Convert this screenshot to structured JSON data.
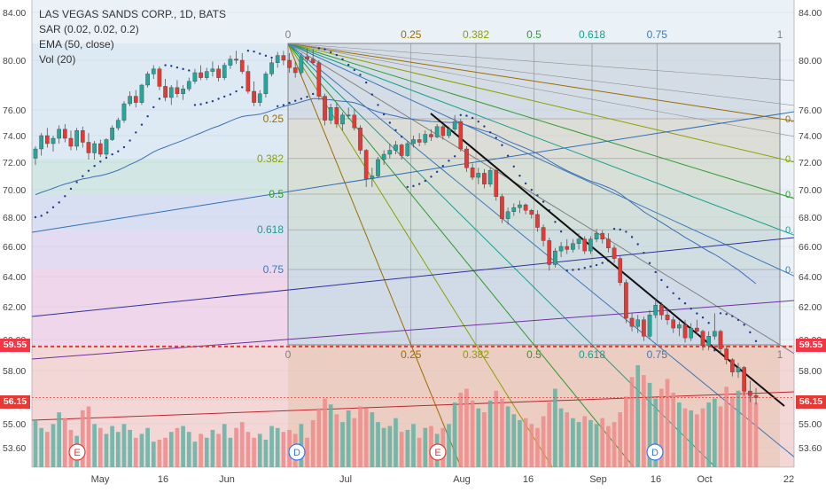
{
  "legend": {
    "title": "LAS VEGAS SANDS CORP., 1D, BATS",
    "sar": "SAR (0.02, 0.02, 0.2)",
    "ema": "EMA (50, close)",
    "vol": "Vol (20)"
  },
  "price_tags": [
    {
      "value": "59.55",
      "color": "#f23645"
    },
    {
      "value": "56.15",
      "color": "#e53935"
    }
  ],
  "chart_data": {
    "type": "candlestick",
    "title": "LAS VEGAS SANDS CORP., 1D, BATS",
    "symbol": "LVS",
    "interval": "1D",
    "exchange": "BATS",
    "ylim": [
      52.6,
      85.0
    ],
    "yticks": [
      "84.00",
      "80.00",
      "76.00",
      "74.00",
      "72.00",
      "70.00",
      "68.00",
      "66.00",
      "64.00",
      "62.00",
      "60.00",
      "58.00",
      "56.00",
      "55.00",
      "53.60"
    ],
    "xticks": [
      "May",
      "16",
      "Jun",
      "Jul",
      "Aug",
      "16",
      "Sep",
      "16",
      "Oct",
      "22"
    ],
    "fib_levels": [
      "0",
      "0.25",
      "0.382",
      "0.5",
      "0.618",
      "0.75",
      "1"
    ],
    "fib_colors": [
      "#808080",
      "#9c6d00",
      "#8ca000",
      "#2e9b2e",
      "#16a08c",
      "#3b79b8",
      "#808080"
    ],
    "last_price": 56.15,
    "horizontal_line": 59.55,
    "earnings_markers": [
      "E",
      "E"
    ],
    "dividend_markers": [
      "D",
      "D"
    ],
    "ohlc": [
      [
        72.3,
        73.2,
        71.8,
        73.0
      ],
      [
        73.0,
        74.2,
        72.5,
        74.0
      ],
      [
        74.0,
        74.6,
        73.1,
        73.4
      ],
      [
        73.4,
        74.0,
        72.8,
        73.8
      ],
      [
        73.8,
        74.8,
        73.4,
        74.5
      ],
      [
        74.5,
        74.9,
        73.5,
        73.8
      ],
      [
        73.8,
        74.4,
        72.9,
        73.2
      ],
      [
        73.2,
        74.6,
        72.9,
        74.4
      ],
      [
        74.4,
        74.7,
        73.1,
        73.5
      ],
      [
        73.5,
        74.2,
        72.2,
        72.7
      ],
      [
        72.7,
        73.6,
        72.2,
        73.4
      ],
      [
        73.4,
        73.7,
        72.4,
        72.6
      ],
      [
        72.6,
        73.8,
        72.4,
        73.7
      ],
      [
        73.7,
        74.8,
        73.6,
        74.6
      ],
      [
        74.6,
        75.4,
        74.4,
        75.2
      ],
      [
        75.2,
        76.7,
        75.0,
        76.5
      ],
      [
        76.5,
        77.5,
        76.3,
        77.1
      ],
      [
        77.1,
        77.6,
        76.2,
        76.6
      ],
      [
        76.6,
        78.1,
        76.4,
        78.0
      ],
      [
        78.0,
        79.1,
        77.8,
        78.9
      ],
      [
        78.9,
        79.6,
        78.5,
        79.3
      ],
      [
        79.3,
        79.5,
        77.6,
        77.9
      ],
      [
        77.9,
        78.5,
        76.7,
        77.0
      ],
      [
        77.0,
        78.0,
        76.4,
        77.8
      ],
      [
        77.8,
        78.4,
        77.0,
        77.3
      ],
      [
        77.3,
        78.0,
        76.8,
        77.7
      ],
      [
        77.7,
        78.6,
        77.5,
        78.3
      ],
      [
        78.3,
        79.3,
        78.1,
        79.0
      ],
      [
        79.0,
        79.6,
        78.4,
        78.6
      ],
      [
        78.6,
        79.4,
        78.4,
        79.1
      ],
      [
        79.1,
        79.9,
        78.7,
        79.3
      ],
      [
        79.3,
        79.6,
        78.3,
        78.6
      ],
      [
        78.6,
        79.8,
        78.4,
        79.6
      ],
      [
        79.6,
        80.4,
        79.3,
        80.1
      ],
      [
        80.1,
        80.8,
        79.7,
        80.0
      ],
      [
        80.0,
        80.6,
        78.9,
        79.1
      ],
      [
        79.1,
        79.6,
        77.3,
        77.5
      ],
      [
        77.5,
        78.3,
        76.3,
        76.6
      ],
      [
        76.6,
        77.6,
        76.3,
        77.3
      ],
      [
        77.3,
        79.1,
        77.0,
        78.9
      ],
      [
        78.9,
        80.1,
        78.7,
        79.8
      ],
      [
        79.8,
        80.7,
        79.4,
        80.4
      ],
      [
        80.4,
        80.8,
        79.6,
        80.0
      ],
      [
        80.0,
        80.6,
        79.0,
        79.4
      ],
      [
        79.4,
        79.9,
        78.6,
        79.0
      ],
      [
        79.0,
        80.6,
        78.8,
        80.3
      ],
      [
        80.3,
        81.0,
        79.8,
        80.1
      ],
      [
        80.1,
        80.9,
        79.6,
        79.8
      ],
      [
        79.8,
        80.0,
        76.8,
        77.1
      ],
      [
        77.1,
        77.3,
        74.8,
        75.2
      ],
      [
        75.2,
        76.5,
        74.9,
        76.2
      ],
      [
        76.2,
        76.6,
        74.6,
        74.9
      ],
      [
        74.9,
        75.8,
        74.4,
        75.6
      ],
      [
        75.6,
        76.2,
        75.3,
        75.6
      ],
      [
        75.6,
        76.1,
        74.4,
        74.6
      ],
      [
        74.6,
        74.8,
        72.6,
        72.9
      ],
      [
        72.9,
        73.0,
        70.2,
        70.8
      ],
      [
        70.8,
        71.6,
        70.2,
        71.0
      ],
      [
        71.0,
        72.4,
        70.9,
        72.2
      ],
      [
        72.2,
        72.9,
        71.8,
        72.6
      ],
      [
        72.6,
        73.4,
        72.3,
        72.9
      ],
      [
        72.9,
        73.6,
        72.6,
        73.3
      ],
      [
        73.3,
        73.4,
        72.2,
        72.5
      ],
      [
        72.5,
        73.6,
        72.4,
        73.4
      ],
      [
        73.4,
        74.0,
        73.1,
        73.7
      ],
      [
        73.7,
        74.2,
        73.2,
        73.5
      ],
      [
        73.5,
        74.4,
        73.3,
        74.1
      ],
      [
        74.1,
        74.5,
        73.6,
        73.9
      ],
      [
        73.9,
        74.9,
        73.8,
        74.7
      ],
      [
        74.7,
        74.9,
        73.7,
        74.0
      ],
      [
        74.0,
        74.7,
        73.8,
        74.5
      ],
      [
        74.5,
        75.6,
        74.2,
        75.1
      ],
      [
        75.1,
        75.3,
        72.8,
        73.0
      ],
      [
        73.0,
        73.2,
        71.3,
        71.6
      ],
      [
        71.6,
        71.9,
        70.7,
        70.9
      ],
      [
        70.9,
        71.6,
        70.4,
        71.2
      ],
      [
        71.2,
        71.5,
        70.1,
        70.4
      ],
      [
        70.4,
        71.6,
        70.2,
        71.4
      ],
      [
        71.4,
        71.5,
        69.2,
        69.5
      ],
      [
        69.5,
        69.7,
        67.6,
        67.9
      ],
      [
        67.9,
        68.7,
        67.5,
        68.4
      ],
      [
        68.4,
        69.0,
        68.1,
        68.7
      ],
      [
        68.7,
        69.2,
        68.3,
        68.9
      ],
      [
        68.9,
        69.0,
        68.2,
        68.5
      ],
      [
        68.5,
        68.6,
        67.9,
        68.2
      ],
      [
        68.2,
        68.5,
        67.0,
        67.3
      ],
      [
        67.3,
        67.5,
        66.0,
        66.4
      ],
      [
        66.4,
        66.6,
        64.4,
        64.8
      ],
      [
        64.8,
        65.9,
        64.6,
        65.7
      ],
      [
        65.7,
        66.3,
        65.3,
        66.0
      ],
      [
        66.0,
        66.5,
        65.5,
        65.8
      ],
      [
        65.8,
        66.5,
        65.6,
        66.2
      ],
      [
        66.2,
        66.9,
        65.8,
        66.5
      ],
      [
        66.5,
        66.7,
        65.5,
        65.7
      ],
      [
        65.7,
        66.7,
        65.5,
        66.5
      ],
      [
        66.5,
        67.2,
        66.3,
        66.9
      ],
      [
        66.9,
        67.1,
        66.2,
        66.5
      ],
      [
        66.5,
        66.9,
        65.6,
        65.9
      ],
      [
        65.9,
        66.1,
        64.9,
        65.2
      ],
      [
        65.2,
        65.4,
        63.4,
        63.6
      ],
      [
        63.6,
        63.8,
        61.0,
        61.3
      ],
      [
        61.3,
        61.6,
        60.5,
        60.8
      ],
      [
        60.8,
        61.5,
        60.4,
        61.2
      ],
      [
        61.2,
        61.4,
        59.9,
        60.2
      ],
      [
        60.2,
        61.8,
        60.0,
        61.5
      ],
      [
        61.5,
        62.5,
        61.3,
        62.1
      ],
      [
        62.1,
        62.3,
        61.2,
        61.5
      ],
      [
        61.5,
        61.9,
        60.9,
        61.2
      ],
      [
        61.2,
        61.4,
        60.4,
        60.7
      ],
      [
        60.7,
        61.1,
        60.2,
        60.9
      ],
      [
        60.9,
        61.2,
        59.8,
        60.1
      ],
      [
        60.1,
        61.0,
        59.9,
        60.7
      ],
      [
        60.7,
        61.2,
        60.3,
        60.5
      ],
      [
        60.5,
        60.6,
        59.3,
        59.6
      ],
      [
        59.6,
        60.5,
        59.3,
        60.2
      ],
      [
        60.2,
        61.6,
        60.0,
        60.5
      ],
      [
        60.5,
        60.6,
        59.1,
        59.4
      ],
      [
        59.4,
        59.6,
        58.4,
        58.7
      ],
      [
        58.7,
        58.8,
        57.6,
        57.9
      ],
      [
        57.9,
        58.5,
        57.5,
        58.2
      ],
      [
        58.2,
        58.3,
        56.3,
        56.6
      ],
      [
        56.6,
        57.3,
        55.9,
        56.3
      ],
      [
        56.3,
        56.8,
        55.8,
        56.15
      ]
    ],
    "volume": [
      48,
      40,
      36,
      44,
      56,
      50,
      38,
      32,
      58,
      62,
      44,
      40,
      34,
      42,
      36,
      44,
      38,
      30,
      34,
      40,
      26,
      28,
      30,
      36,
      40,
      42,
      36,
      26,
      34,
      30,
      38,
      34,
      44,
      30,
      40,
      46,
      36,
      30,
      34,
      28,
      42,
      40,
      36,
      38,
      34,
      44,
      30,
      48,
      60,
      70,
      64,
      54,
      46,
      58,
      50,
      62,
      60,
      56,
      46,
      40,
      42,
      50,
      36,
      38,
      44,
      30,
      40,
      42,
      34,
      40,
      44,
      66,
      76,
      80,
      68,
      60,
      56,
      68,
      78,
      70,
      62,
      54,
      48,
      50,
      44,
      40,
      52,
      66,
      80,
      60,
      56,
      50,
      46,
      52,
      48,
      44,
      50,
      42,
      46,
      56,
      72,
      92,
      104,
      94,
      86,
      70,
      80,
      90,
      76,
      66,
      60,
      58,
      54,
      60,
      66,
      70,
      62,
      82,
      72,
      78,
      88,
      76,
      66
    ]
  }
}
